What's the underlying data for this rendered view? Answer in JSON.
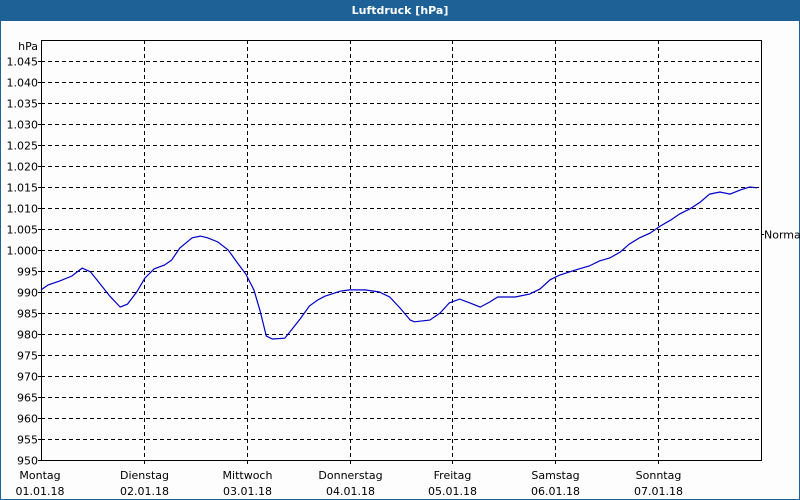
{
  "window": {
    "title": "Luftdruck [hPa]"
  },
  "colors": {
    "titlebar": "#1d6197",
    "line": "#0000c8",
    "grid": "#000000",
    "background": "#fcfdfc"
  },
  "chart_data": {
    "type": "line",
    "title": "Luftdruck [hPa]",
    "xlabel": "",
    "ylabel": "hPa",
    "ylim": [
      950,
      1050
    ],
    "yticks": [
      "950",
      "955",
      "960",
      "965",
      "970",
      "975",
      "980",
      "985",
      "990",
      "995",
      "1.000",
      "1.005",
      "1.010",
      "1.015",
      "1.020",
      "1.025",
      "1.030",
      "1.035",
      "1.040",
      "1.045"
    ],
    "grid": true,
    "reference_marker": {
      "label": "Normal",
      "value": 1003.7
    },
    "categories": [
      {
        "day": "Montag",
        "date": "01.01.18"
      },
      {
        "day": "Dienstag",
        "date": "02.01.18"
      },
      {
        "day": "Mittwoch",
        "date": "03.01.18"
      },
      {
        "day": "Donnerstag",
        "date": "04.01.18"
      },
      {
        "day": "Freitag",
        "date": "05.01.18"
      },
      {
        "day": "Samstag",
        "date": "06.01.18"
      },
      {
        "day": "Sonntag",
        "date": "07.01.18"
      }
    ],
    "series": [
      {
        "name": "Luftdruck",
        "x_days": [
          0.0,
          0.07,
          0.18,
          0.3,
          0.4,
          0.48,
          0.57,
          0.67,
          0.77,
          0.84,
          0.93,
          1.01,
          1.1,
          1.2,
          1.27,
          1.35,
          1.47,
          1.55,
          1.62,
          1.72,
          1.82,
          1.91,
          1.99,
          2.07,
          2.13,
          2.19,
          2.25,
          2.37,
          2.42,
          2.52,
          2.61,
          2.69,
          2.76,
          2.91,
          3.0,
          3.15,
          3.29,
          3.39,
          3.49,
          3.59,
          3.63,
          3.78,
          3.88,
          3.97,
          4.07,
          4.17,
          4.27,
          4.36,
          4.44,
          4.61,
          4.75,
          4.85,
          4.95,
          5.04,
          5.19,
          5.33,
          5.43,
          5.53,
          5.63,
          5.72,
          5.82,
          5.92,
          6.02,
          6.12,
          6.21,
          6.31,
          6.41,
          6.5,
          6.6,
          6.7,
          6.8,
          6.89,
          6.96
        ],
        "values": [
          990.5,
          991.7,
          992.6,
          993.8,
          995.7,
          994.8,
          992.1,
          989.0,
          986.4,
          987.1,
          990.0,
          993.3,
          995.5,
          996.4,
          997.6,
          1000.5,
          1002.9,
          1003.3,
          1002.9,
          1001.9,
          1000.0,
          996.9,
          994.3,
          990.5,
          985.5,
          979.5,
          978.8,
          979.0,
          980.5,
          983.6,
          986.7,
          988.1,
          989.0,
          990.2,
          990.5,
          990.5,
          990.0,
          988.8,
          986.2,
          983.3,
          982.9,
          983.3,
          985.0,
          987.4,
          988.3,
          987.4,
          986.4,
          987.6,
          988.8,
          988.8,
          989.5,
          990.7,
          992.9,
          994.0,
          995.2,
          996.2,
          997.4,
          998.1,
          999.5,
          1001.4,
          1002.9,
          1004.0,
          1005.7,
          1007.1,
          1008.6,
          1009.8,
          1011.4,
          1013.3,
          1013.8,
          1013.3,
          1014.3,
          1015.0,
          1014.8
        ]
      }
    ]
  },
  "axes": {
    "y_unit": "hPa",
    "right_marker": "Normal"
  }
}
